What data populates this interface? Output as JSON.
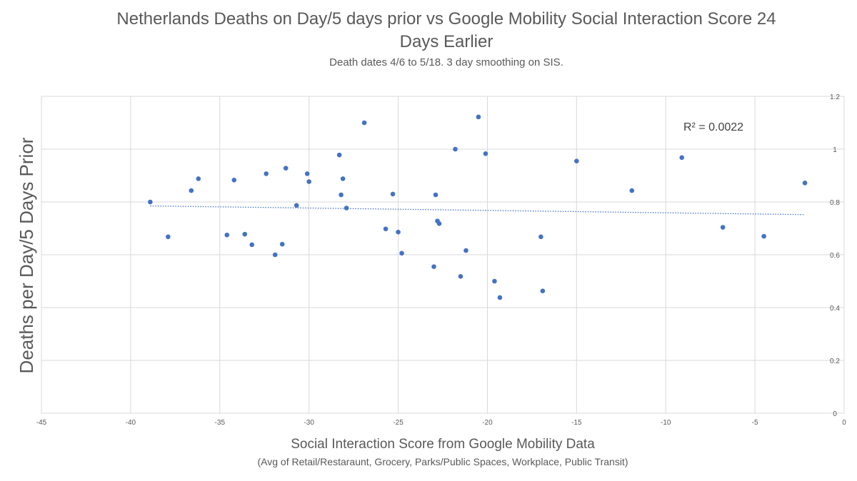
{
  "chart_data": {
    "type": "scatter",
    "title_line1": "Netherlands Deaths on Day/5 days prior vs Google Mobility Social Interaction Score 24",
    "title_line2": "Days Earlier",
    "subtitle": "Death dates 4/6 to 5/18.  3 day smoothing on SIS.",
    "xlabel": "Social Interaction Score from Google Mobility Data",
    "xlabel_sub": "(Avg of Retail/Restaraunt, Grocery, Parks/Public Spaces, Workplace, Public Transit)",
    "ylabel": "Deaths per Day/5 Days Prior",
    "xlim": [
      -45,
      0
    ],
    "ylim": [
      0,
      1.2
    ],
    "x_ticks": [
      "-45",
      "-40",
      "-35",
      "-30",
      "-25",
      "-20",
      "-15",
      "-10",
      "-5",
      "0"
    ],
    "y_ticks": [
      "0",
      "0.2",
      "0.4",
      "0.6",
      "0.8",
      "1",
      "1.2"
    ],
    "grid": true,
    "y_axis_position": "right",
    "annotation": "R² = 0.0022",
    "point_color": "#4472c4",
    "trendline": {
      "type": "linear",
      "style": "dotted",
      "x_start": -38.9,
      "y_start": 0.785,
      "x_end": -2.2,
      "y_end": 0.752
    },
    "series": [
      {
        "points": [
          [
            -38.9,
            0.8
          ],
          [
            -37.9,
            0.668
          ],
          [
            -36.6,
            0.843
          ],
          [
            -36.2,
            0.888
          ],
          [
            -34.6,
            0.675
          ],
          [
            -34.2,
            0.883
          ],
          [
            -33.6,
            0.678
          ],
          [
            -33.2,
            0.638
          ],
          [
            -32.4,
            0.907
          ],
          [
            -31.9,
            0.6
          ],
          [
            -31.5,
            0.64
          ],
          [
            -31.3,
            0.928
          ],
          [
            -30.7,
            0.787
          ],
          [
            -30.1,
            0.907
          ],
          [
            -30.0,
            0.877
          ],
          [
            -28.3,
            0.978
          ],
          [
            -28.2,
            0.827
          ],
          [
            -28.1,
            0.888
          ],
          [
            -27.9,
            0.777
          ],
          [
            -26.9,
            1.1
          ],
          [
            -25.7,
            0.698
          ],
          [
            -25.3,
            0.83
          ],
          [
            -25.0,
            0.686
          ],
          [
            -24.8,
            0.606
          ],
          [
            -23.0,
            0.555
          ],
          [
            -22.9,
            0.827
          ],
          [
            -22.8,
            0.728
          ],
          [
            -22.7,
            0.718
          ],
          [
            -21.8,
            1.0
          ],
          [
            -21.5,
            0.518
          ],
          [
            -21.2,
            0.616
          ],
          [
            -20.5,
            1.122
          ],
          [
            -20.1,
            0.983
          ],
          [
            -19.6,
            0.5
          ],
          [
            -19.3,
            0.438
          ],
          [
            -17.0,
            0.668
          ],
          [
            -16.9,
            0.463
          ],
          [
            -15.0,
            0.955
          ],
          [
            -11.9,
            0.843
          ],
          [
            -9.1,
            0.968
          ],
          [
            -6.8,
            0.704
          ],
          [
            -4.5,
            0.67
          ],
          [
            -2.2,
            0.872
          ]
        ]
      }
    ]
  }
}
